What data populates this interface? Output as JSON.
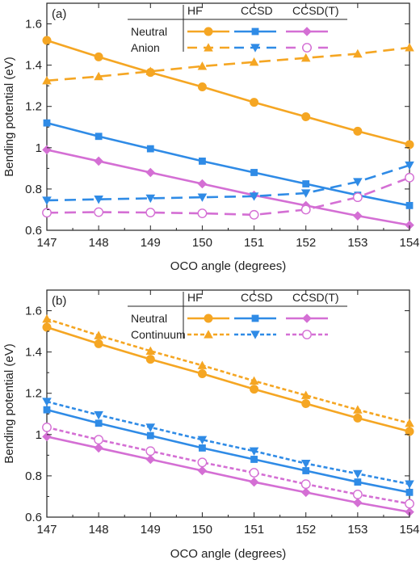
{
  "colors": {
    "HF": "#f5a623",
    "CCSD": "#2f8be6",
    "CCSD(T)": "#d46fd4",
    "axis": "#222222"
  },
  "chart_data": [
    {
      "type": "line",
      "panel_label": "(a)",
      "xlabel": "OCO angle (degrees)",
      "ylabel": "Bending potential (eV)",
      "x": [
        147,
        148,
        149,
        150,
        151,
        152,
        153,
        154
      ],
      "xlim": [
        147,
        154
      ],
      "ylim": [
        0.6,
        1.7
      ],
      "yticks": [
        0.6,
        0.8,
        1,
        1.2,
        1.4,
        1.6
      ],
      "ytick_labels": [
        "0.6",
        "0.8",
        "1",
        "1.2",
        "1.4",
        "1.6"
      ],
      "grid": false,
      "legend": {
        "placement": "top-center",
        "columns": [
          "HF",
          "CCSD",
          "CCSD(T)"
        ],
        "rows": [
          "Neutral",
          "Anion"
        ]
      },
      "series": [
        {
          "method": "HF",
          "state": "Neutral",
          "marker": "circle",
          "dash": "solid",
          "values": [
            1.52,
            1.44,
            1.365,
            1.295,
            1.22,
            1.15,
            1.08,
            1.015
          ]
        },
        {
          "method": "CCSD",
          "state": "Neutral",
          "marker": "square",
          "dash": "solid",
          "values": [
            1.12,
            1.055,
            0.995,
            0.935,
            0.88,
            0.825,
            0.77,
            0.72
          ]
        },
        {
          "method": "CCSD(T)",
          "state": "Neutral",
          "marker": "diamond",
          "dash": "solid",
          "values": [
            0.99,
            0.935,
            0.88,
            0.825,
            0.77,
            0.72,
            0.67,
            0.625
          ]
        },
        {
          "method": "HF",
          "state": "Anion",
          "marker": "triangle-up",
          "dash": "dashed",
          "values": [
            1.325,
            1.345,
            1.37,
            1.395,
            1.415,
            1.435,
            1.455,
            1.485
          ]
        },
        {
          "method": "CCSD",
          "state": "Anion",
          "marker": "triangle-down",
          "dash": "dashed",
          "values": [
            0.745,
            0.75,
            0.755,
            0.76,
            0.765,
            0.78,
            0.835,
            0.915
          ]
        },
        {
          "method": "CCSD(T)",
          "state": "Anion",
          "marker": "open-circle",
          "dash": "dashed",
          "values": [
            0.685,
            0.688,
            0.686,
            0.682,
            0.675,
            0.7,
            0.76,
            0.855
          ]
        }
      ]
    },
    {
      "type": "line",
      "panel_label": "(b)",
      "xlabel": "OCO angle (degrees)",
      "ylabel": "Bending potential (eV)",
      "x": [
        147,
        148,
        149,
        150,
        151,
        152,
        153,
        154
      ],
      "xlim": [
        147,
        154
      ],
      "ylim": [
        0.6,
        1.7
      ],
      "yticks": [
        0.6,
        0.8,
        1,
        1.2,
        1.4,
        1.6
      ],
      "ytick_labels": [
        "0.6",
        "0.8",
        "1",
        "1.2",
        "1.4",
        "1.6"
      ],
      "grid": false,
      "legend": {
        "placement": "top-center",
        "columns": [
          "HF",
          "CCSD",
          "CCSD(T)"
        ],
        "rows": [
          "Neutral",
          "Continuum"
        ]
      },
      "series": [
        {
          "method": "HF",
          "state": "Neutral",
          "marker": "circle",
          "dash": "solid",
          "values": [
            1.52,
            1.44,
            1.365,
            1.295,
            1.22,
            1.15,
            1.08,
            1.015
          ]
        },
        {
          "method": "CCSD",
          "state": "Neutral",
          "marker": "square",
          "dash": "solid",
          "values": [
            1.12,
            1.055,
            0.995,
            0.935,
            0.88,
            0.825,
            0.77,
            0.72
          ]
        },
        {
          "method": "CCSD(T)",
          "state": "Neutral",
          "marker": "diamond",
          "dash": "solid",
          "values": [
            0.99,
            0.935,
            0.88,
            0.825,
            0.77,
            0.72,
            0.67,
            0.625
          ]
        },
        {
          "method": "HF",
          "state": "Continuum",
          "marker": "triangle-up",
          "dash": "dotted",
          "values": [
            1.56,
            1.48,
            1.405,
            1.335,
            1.26,
            1.19,
            1.12,
            1.055
          ]
        },
        {
          "method": "CCSD",
          "state": "Continuum",
          "marker": "triangle-down",
          "dash": "dotted",
          "values": [
            1.16,
            1.095,
            1.035,
            0.975,
            0.92,
            0.86,
            0.81,
            0.76
          ]
        },
        {
          "method": "CCSD(T)",
          "state": "Continuum",
          "marker": "open-circle",
          "dash": "dotted",
          "values": [
            1.035,
            0.975,
            0.92,
            0.865,
            0.815,
            0.76,
            0.71,
            0.665
          ]
        }
      ]
    }
  ]
}
